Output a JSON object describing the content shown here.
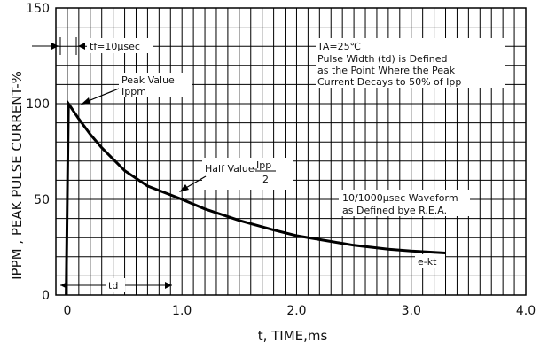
{
  "chart_data": {
    "type": "line",
    "xlabel": "t, TIME,ms",
    "ylabel": "IPPM , PEAK PULSE CURRENT-%",
    "xlim": [
      -0.1,
      4.0
    ],
    "ylim": [
      0,
      150
    ],
    "grid": true,
    "x_ticks": [
      {
        "value": 0,
        "label": "0"
      },
      {
        "value": 1.0,
        "label": "1.0"
      },
      {
        "value": 2.0,
        "label": "2.0"
      },
      {
        "value": 3.0,
        "label": "3.0"
      },
      {
        "value": 4.0,
        "label": "4.0"
      }
    ],
    "y_ticks": [
      {
        "value": 0,
        "label": "0"
      },
      {
        "value": 50,
        "label": "50"
      },
      {
        "value": 100,
        "label": "100"
      },
      {
        "value": 150,
        "label": "150"
      }
    ],
    "series": [
      {
        "x": [
          -0.01,
          0.01,
          0.1,
          0.2,
          0.3,
          0.5,
          0.7,
          1.0,
          1.2,
          1.5,
          1.8,
          2.0,
          2.3,
          2.5,
          2.8,
          3.0,
          3.3
        ],
        "y": [
          0,
          100,
          92,
          84,
          77,
          65,
          57,
          50,
          45,
          39,
          34,
          31,
          28,
          26,
          24,
          23,
          22
        ]
      }
    ],
    "annotations": {
      "tf": "tf=10μsec",
      "ta": "TA=25℃",
      "pulse_width": [
        "Pulse Width (td) is Defined",
        "as the Point Where the Peak",
        "Current Decays to 50% of Ipp"
      ],
      "peak": [
        "Peak Value",
        "Ippm"
      ],
      "half_value": "Half Value-",
      "half_value_num": "Ipp",
      "half_value_den": "2",
      "waveform": [
        "10/1000μsec Waveform",
        "as Defined bye R.E.A."
      ],
      "ekt": "e-kt",
      "td": "td"
    }
  }
}
